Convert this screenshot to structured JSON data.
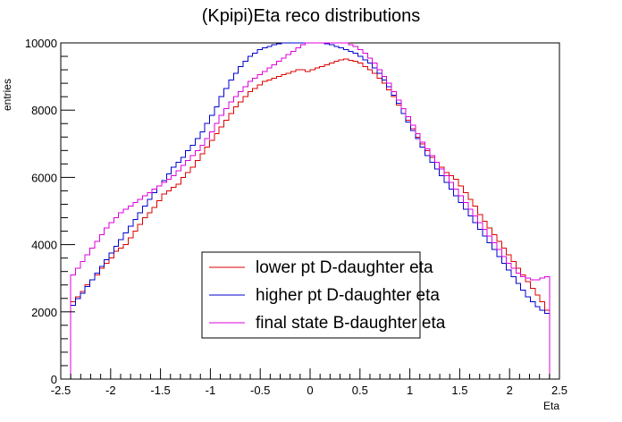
{
  "chart_data": {
    "type": "line",
    "title": "(Kpipi)Eta reco distributions",
    "xlabel": "Eta",
    "ylabel": "entries",
    "xlim": [
      -2.5,
      2.5
    ],
    "ylim": [
      0,
      10000
    ],
    "x_ticks": [
      "-2.5",
      "-2",
      "-1.5",
      "-1",
      "-0.5",
      "0",
      "0.5",
      "1",
      "1.5",
      "2",
      "2.5"
    ],
    "y_ticks": [
      "0",
      "2000",
      "4000",
      "6000",
      "8000",
      "10000"
    ],
    "grid": false,
    "legend_position": "bottom-center",
    "histogram_range": [
      -2.4,
      2.4
    ],
    "histogram_bins": 100,
    "series": [
      {
        "name": "lower pt D-daughter eta",
        "color": "#dd0000",
        "values": [
          2300,
          2450,
          2600,
          2800,
          2950,
          3100,
          3300,
          3450,
          3600,
          3800,
          3900,
          4000,
          4200,
          4400,
          4600,
          4800,
          4950,
          5100,
          5300,
          5500,
          5600,
          5700,
          5800,
          6000,
          6150,
          6300,
          6500,
          6700,
          6900,
          7100,
          7300,
          7500,
          7700,
          7900,
          8100,
          8250,
          8400,
          8550,
          8650,
          8750,
          8850,
          8900,
          8950,
          9000,
          9050,
          9100,
          9150,
          9200,
          9200,
          9150,
          9200,
          9250,
          9300,
          9350,
          9400,
          9450,
          9500,
          9520,
          9480,
          9450,
          9400,
          9300,
          9200,
          9100,
          8950,
          8800,
          8600,
          8400,
          8150,
          7900,
          7700,
          7450,
          7200,
          7000,
          6800,
          6600,
          6450,
          6300,
          6150,
          6050,
          5950,
          5750,
          5550,
          5350,
          5150,
          4900,
          4700,
          4500,
          4300,
          4100,
          3900,
          3700,
          3500,
          3300,
          3100,
          2900,
          2700,
          2500,
          2300,
          2050
        ]
      },
      {
        "name": "higher pt D-daughter eta",
        "color": "#0000cc",
        "values": [
          2200,
          2400,
          2550,
          2750,
          2950,
          3150,
          3350,
          3550,
          3750,
          3950,
          4150,
          4350,
          4550,
          4750,
          4950,
          5150,
          5350,
          5550,
          5750,
          5900,
          6100,
          6300,
          6450,
          6600,
          6800,
          6950,
          7150,
          7350,
          7600,
          7850,
          8100,
          8400,
          8650,
          8900,
          9100,
          9300,
          9450,
          9600,
          9700,
          9800,
          9850,
          9900,
          9950,
          9980,
          10000,
          10000,
          10000,
          10000,
          10000,
          10000,
          10000,
          10000,
          10000,
          9980,
          9950,
          9900,
          9850,
          9800,
          9750,
          9700,
          9600,
          9500,
          9400,
          9250,
          9100,
          8900,
          8700,
          8450,
          8200,
          7900,
          7650,
          7400,
          7150,
          6900,
          6650,
          6450,
          6250,
          6050,
          5850,
          5650,
          5450,
          5250,
          5050,
          4850,
          4650,
          4450,
          4250,
          4050,
          3850,
          3650,
          3450,
          3250,
          3050,
          2850,
          2650,
          2450,
          2300,
          2150,
          2050,
          1950
        ]
      },
      {
        "name": "final state B-daughter eta",
        "color": "#dd00dd",
        "values": [
          3100,
          3300,
          3500,
          3700,
          3900,
          4100,
          4300,
          4500,
          4650,
          4800,
          4950,
          5050,
          5150,
          5250,
          5350,
          5450,
          5550,
          5650,
          5750,
          5850,
          5950,
          6050,
          6200,
          6350,
          6500,
          6650,
          6800,
          6950,
          7150,
          7350,
          7600,
          7850,
          8050,
          8250,
          8400,
          8550,
          8700,
          8850,
          8950,
          9050,
          9150,
          9250,
          9350,
          9450,
          9550,
          9650,
          9750,
          9850,
          9950,
          10000,
          10000,
          10000,
          10000,
          10000,
          10000,
          10000,
          10000,
          10000,
          9950,
          9900,
          9800,
          9700,
          9550,
          9400,
          9200,
          9000,
          8800,
          8550,
          8300,
          8050,
          7800,
          7550,
          7300,
          7050,
          6850,
          6650,
          6450,
          6250,
          6050,
          5850,
          5650,
          5450,
          5250,
          5050,
          4850,
          4650,
          4450,
          4250,
          4050,
          3850,
          3650,
          3450,
          3300,
          3150,
          3050,
          3000,
          2950,
          2950,
          3000,
          3050
        ]
      }
    ]
  }
}
